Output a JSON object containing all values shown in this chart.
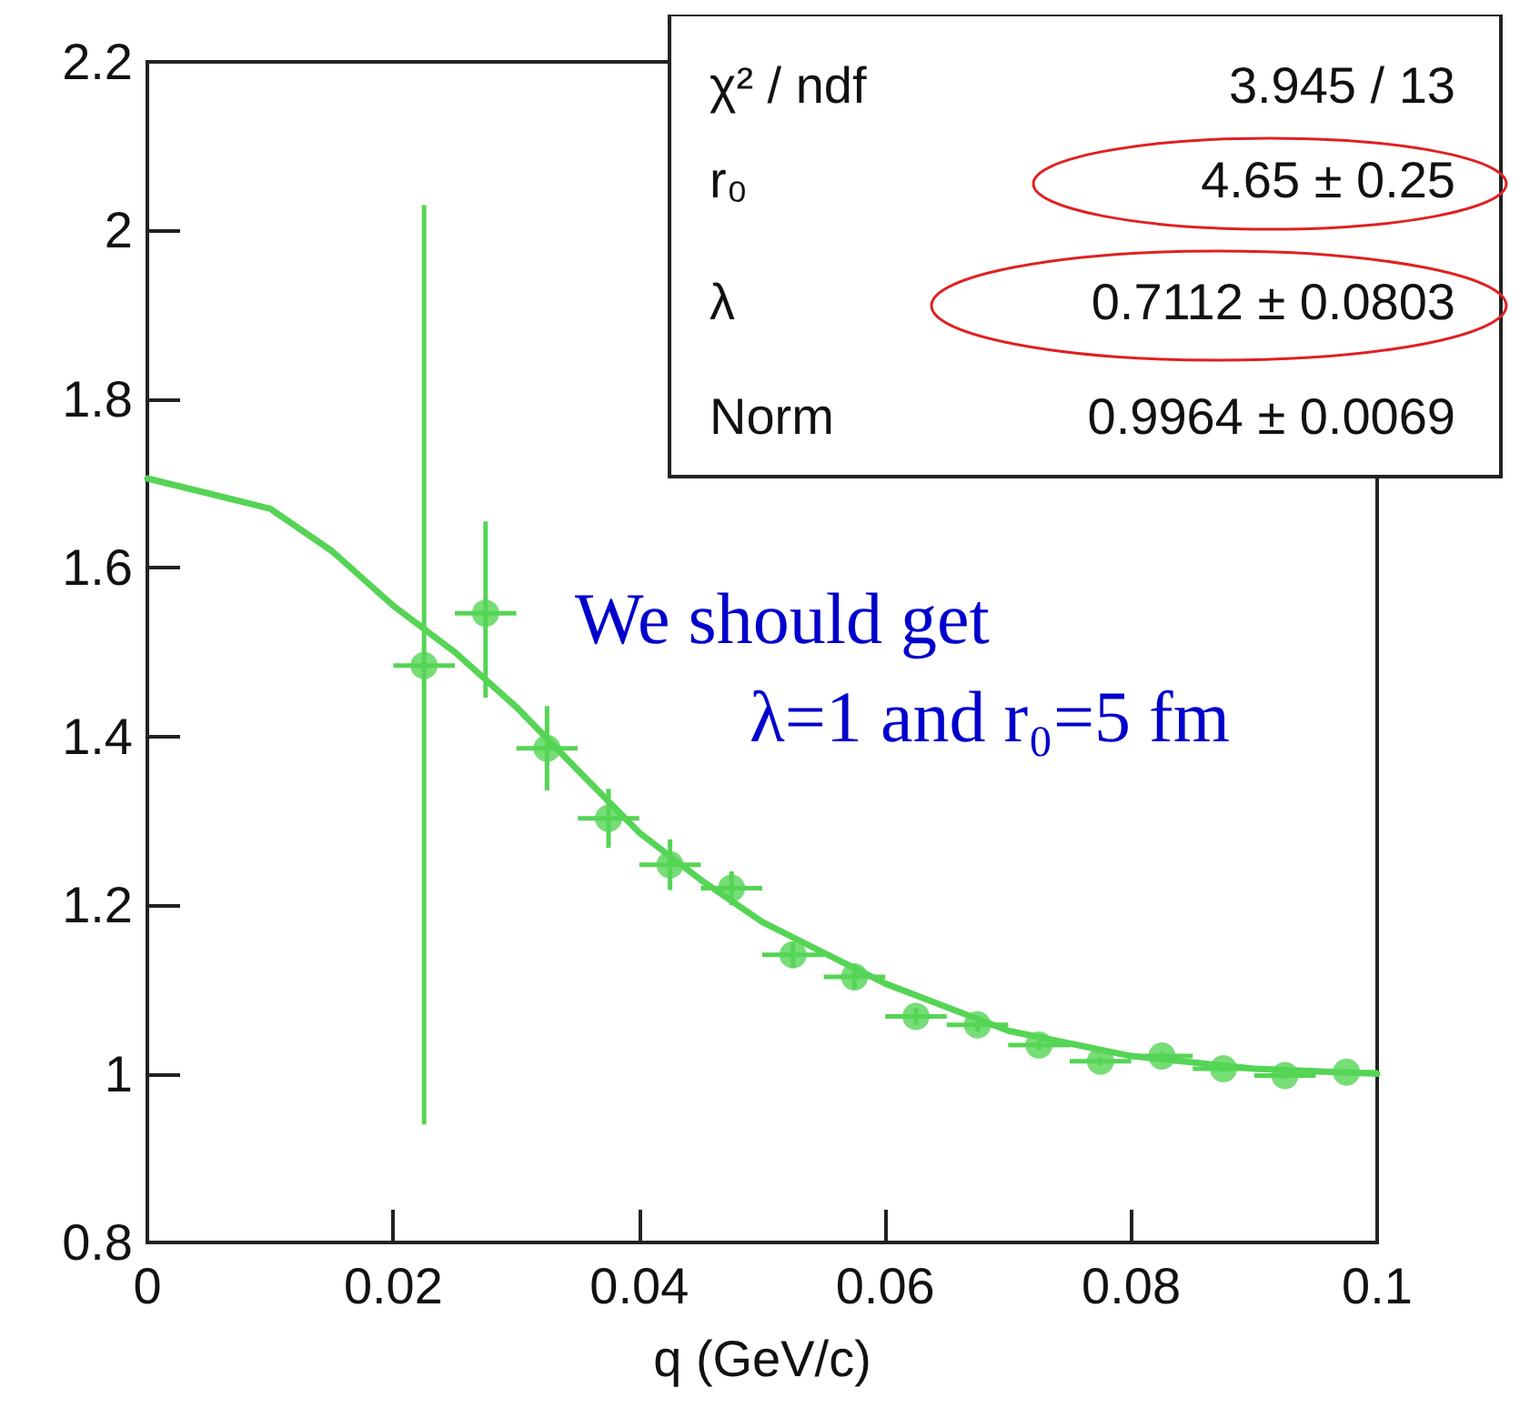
{
  "chart_data": {
    "type": "scatter",
    "xlabel": "q (GeV/c)",
    "x": [
      0.0225,
      0.0275,
      0.0325,
      0.0375,
      0.0425,
      0.0475,
      0.0525,
      0.0575,
      0.0625,
      0.0675,
      0.0725,
      0.0775,
      0.0825,
      0.0875,
      0.0925,
      0.0975
    ],
    "series": [
      {
        "color": "#55d455",
        "values": [
          1.484,
          1.546,
          1.386,
          1.303,
          1.248,
          1.22,
          1.141,
          1.115,
          1.068,
          1.058,
          1.034,
          1.015,
          1.021,
          1.006,
          0.998,
          1.002
        ],
        "errors": [
          [
            0.94,
            2.03
          ],
          [
            1.446,
            1.655
          ],
          [
            1.336,
            1.436
          ],
          [
            1.268,
            1.338
          ],
          [
            1.218,
            1.278
          ],
          [
            1.2,
            1.24
          ],
          [
            1.126,
            1.156
          ],
          [
            1.1,
            1.13
          ],
          [
            1.058,
            1.078
          ],
          [
            1.05,
            1.066
          ],
          [
            1.028,
            1.04
          ],
          [
            1.01,
            1.02
          ],
          [
            1.016,
            1.026
          ],
          [
            1.002,
            1.01
          ],
          [
            0.994,
            1.002
          ],
          [
            0.998,
            1.006
          ]
        ],
        "xerrors": [
          0.0025,
          0.0025,
          0.0025,
          0.0025,
          0.0025,
          0.0025,
          0.0025,
          0.0025,
          0.0025,
          0.0025,
          0.0025,
          0.0025,
          0.0025,
          0.0025,
          0.0025,
          0.0025
        ]
      },
      {
        "type": "line",
        "color": "#55d455",
        "marker": "none",
        "x": [
          0,
          0.01,
          0.015,
          0.02,
          0.025,
          0.03,
          0.035,
          0.04,
          0.045,
          0.05,
          0.06,
          0.07,
          0.08,
          0.09,
          0.1
        ],
        "values": [
          1.706,
          1.67,
          1.62,
          1.555,
          1.5,
          1.435,
          1.36,
          1.286,
          1.23,
          1.18,
          1.107,
          1.051,
          1.021,
          1.006,
          1.0
        ]
      }
    ],
    "xlim": [
      0,
      0.1
    ],
    "xticks": [
      0,
      0.02,
      0.04,
      0.06,
      0.08,
      0.1
    ],
    "ylim": [
      0.8,
      2.2
    ],
    "yticks": [
      0.8,
      1,
      1.2,
      1.4,
      1.6,
      1.8,
      2,
      2.2
    ],
    "marker": "circle",
    "grid": false,
    "annotations": [
      "χ² / ndf",
      "3.945 / 13",
      "r₀",
      "4.65 ± 0.25",
      "λ",
      "0.7112 ± 0.0803",
      "Norm",
      "0.9964 ± 0.0069",
      "We should get",
      "λ=1 and r₀=5 fm"
    ]
  }
}
